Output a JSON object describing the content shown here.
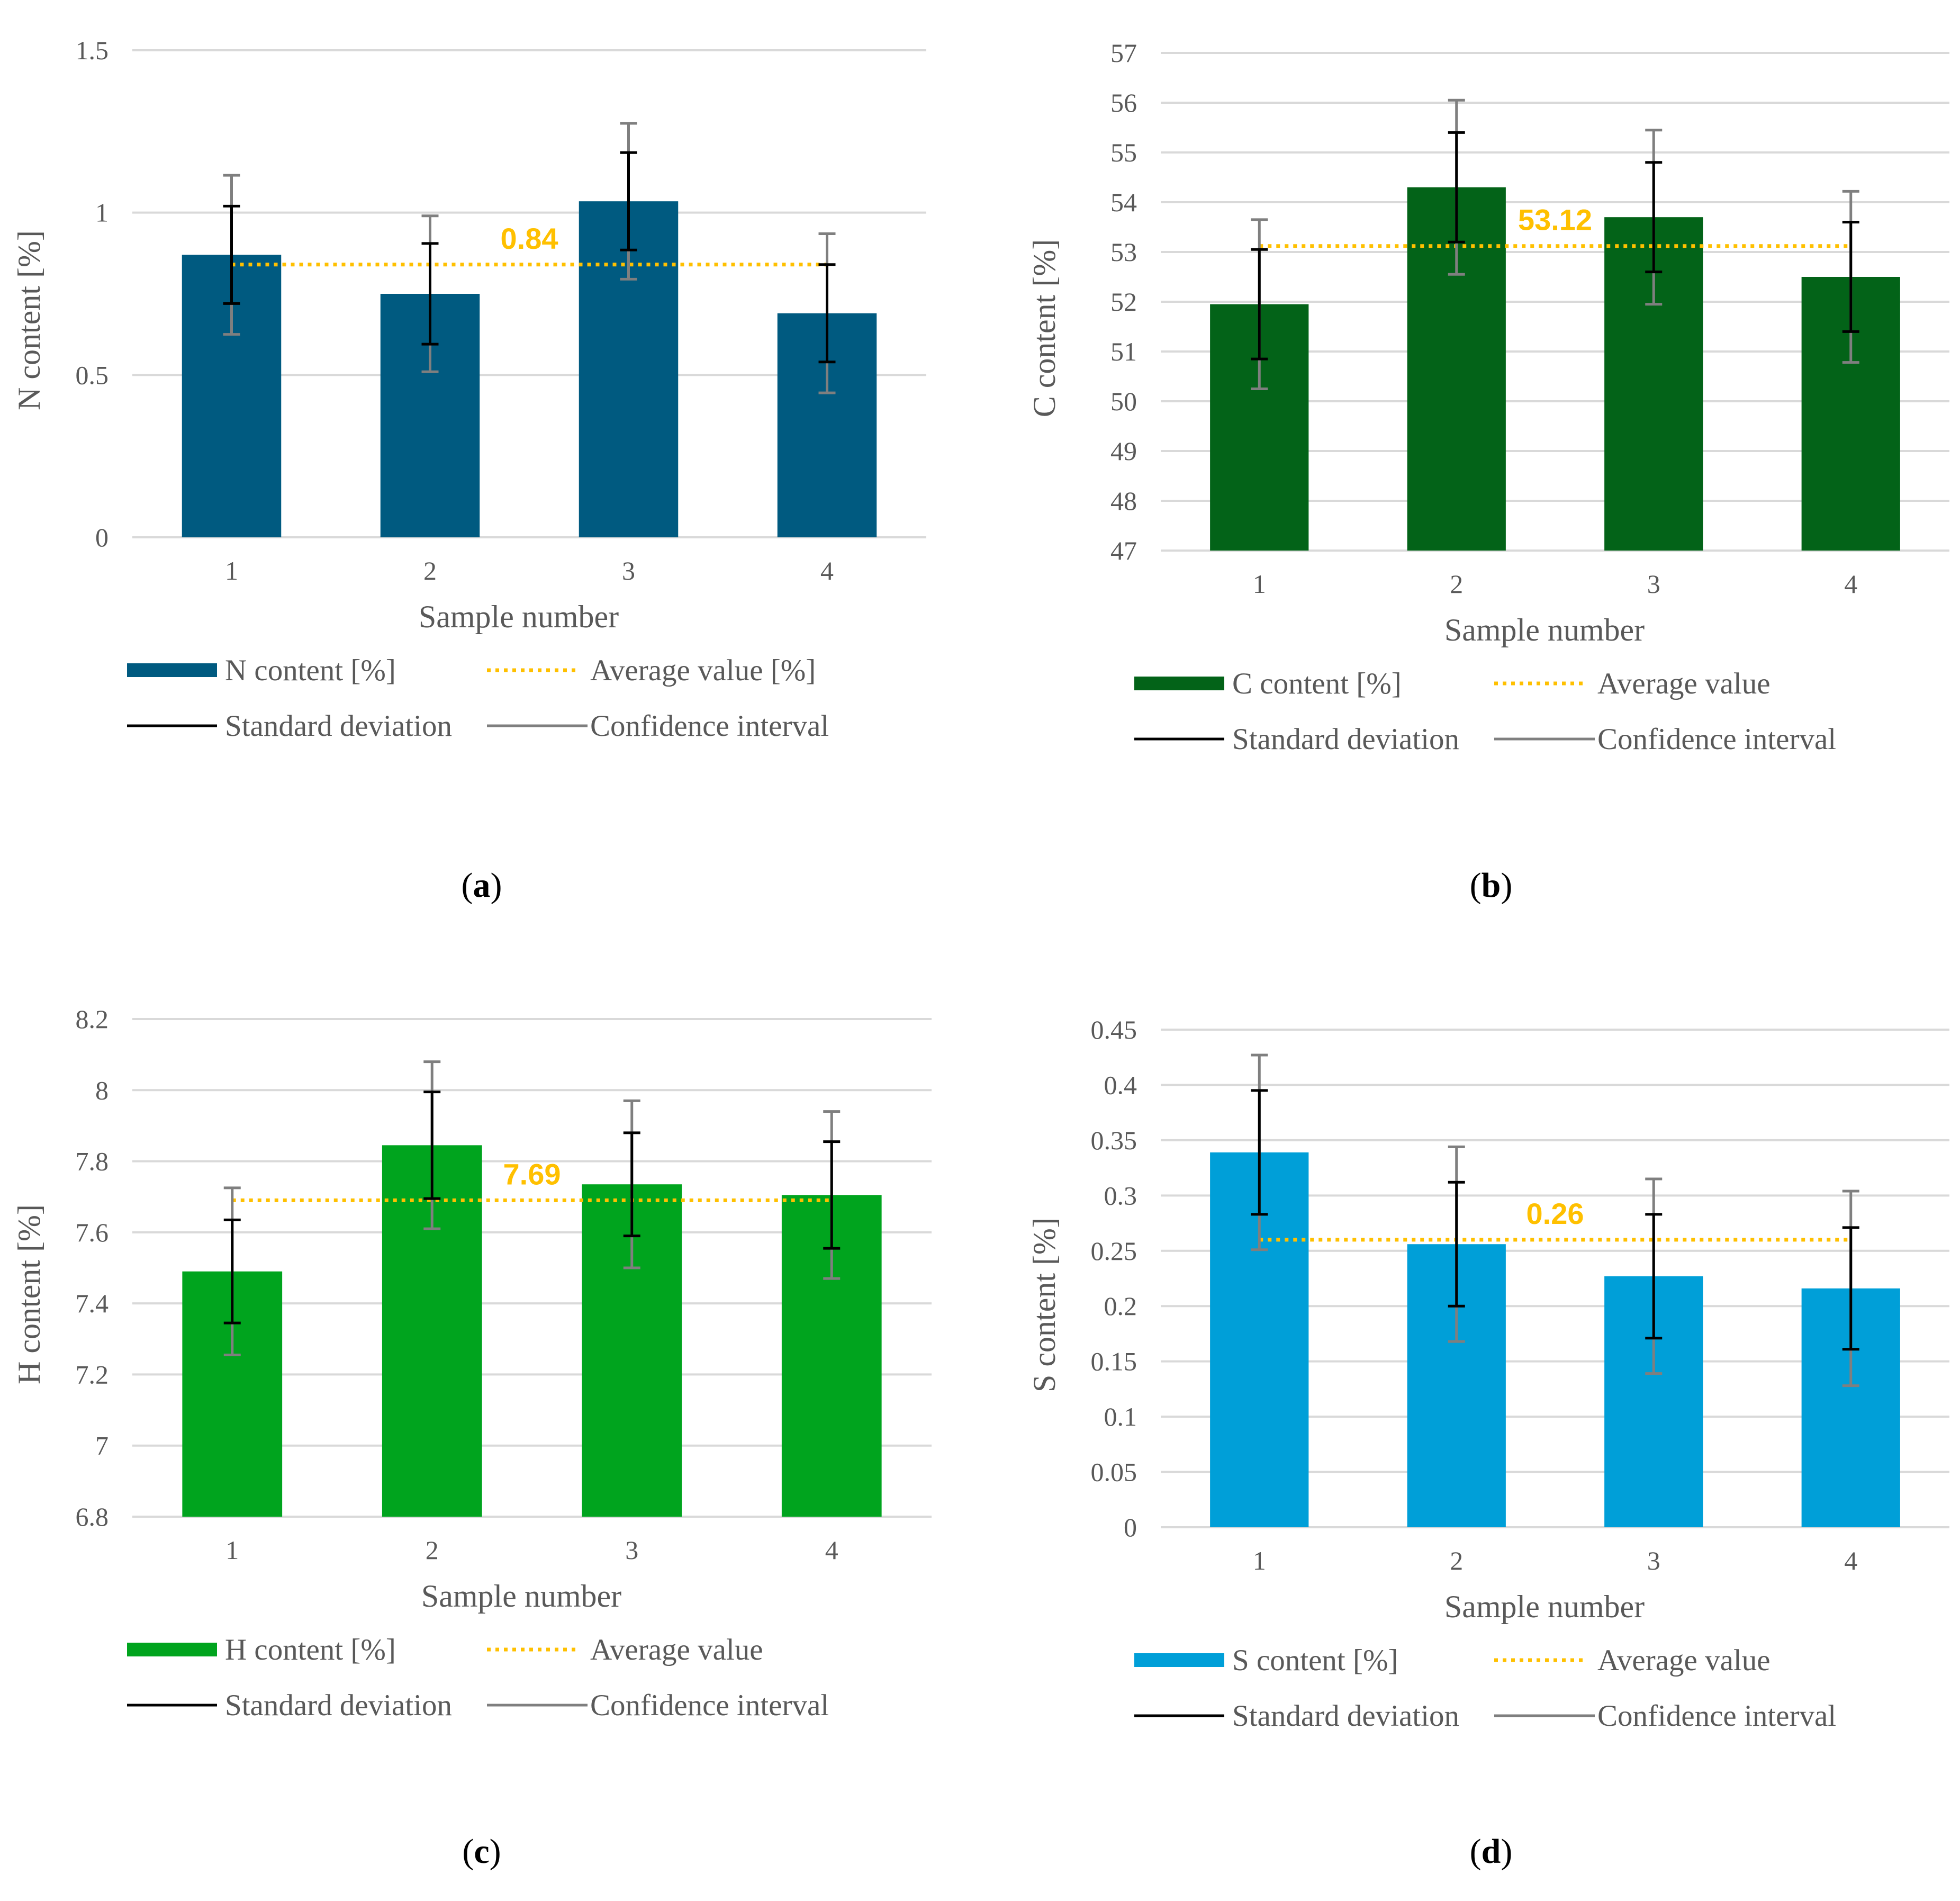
{
  "chart_data": [
    {
      "id": "a",
      "type": "bar",
      "caption_letter": "a",
      "categories": [
        "1",
        "2",
        "3",
        "4"
      ],
      "values": [
        0.87,
        0.75,
        1.035,
        0.69
      ],
      "std_dev": [
        0.15,
        0.155,
        0.15,
        0.15
      ],
      "conf_int": [
        0.245,
        0.24,
        0.24,
        0.245
      ],
      "average": 0.84,
      "average_label": "0.84",
      "xlabel": "Sample number",
      "ylabel": "N content [%]",
      "ylim": [
        0,
        1.5
      ],
      "yticks": [
        "0",
        "0.5",
        "1",
        "1.5"
      ],
      "ytick_values": [
        0,
        0.5,
        1,
        1.5
      ],
      "grid": true,
      "bar_color": "#005a80",
      "legend": [
        "N content [%]",
        "Average value [%]",
        "Standard deviation",
        "Confidence interval"
      ]
    },
    {
      "id": "b",
      "type": "bar",
      "caption_letter": "b",
      "categories": [
        "1",
        "2",
        "3",
        "4"
      ],
      "values": [
        51.95,
        54.3,
        53.7,
        52.5
      ],
      "std_dev": [
        1.1,
        1.1,
        1.1,
        1.1
      ],
      "conf_int": [
        1.7,
        1.75,
        1.75,
        1.72
      ],
      "average": 53.12,
      "average_label": "53.12",
      "xlabel": "Sample number",
      "ylabel": "C content [%]",
      "ylim": [
        47,
        57
      ],
      "yticks": [
        "47",
        "48",
        "49",
        "50",
        "51",
        "52",
        "53",
        "54",
        "55",
        "56",
        "57"
      ],
      "ytick_values": [
        47,
        48,
        49,
        50,
        51,
        52,
        53,
        54,
        55,
        56,
        57
      ],
      "grid": true,
      "bar_color": "#036318",
      "legend": [
        "C content [%]",
        "Average value",
        "Standard deviation",
        "Confidence interval"
      ]
    },
    {
      "id": "c",
      "type": "bar",
      "caption_letter": "c",
      "categories": [
        "1",
        "2",
        "3",
        "4"
      ],
      "values": [
        7.49,
        7.845,
        7.735,
        7.705
      ],
      "std_dev": [
        0.145,
        0.15,
        0.145,
        0.15
      ],
      "conf_int": [
        0.235,
        0.235,
        0.235,
        0.235
      ],
      "average": 7.69,
      "average_label": "7.69",
      "xlabel": "Sample number",
      "ylabel": "H content [%]",
      "ylim": [
        6.8,
        8.2
      ],
      "yticks": [
        "6.8",
        "7",
        "7.2",
        "7.4",
        "7.6",
        "7.8",
        "8",
        "8.2"
      ],
      "ytick_values": [
        6.8,
        7.0,
        7.2,
        7.4,
        7.6,
        7.8,
        8.0,
        8.2
      ],
      "grid": true,
      "bar_color": "#00a41e",
      "legend": [
        "H content [%]",
        "Average value",
        "Standard deviation",
        "Confidence interval"
      ]
    },
    {
      "id": "d",
      "type": "bar",
      "caption_letter": "d",
      "categories": [
        "1",
        "2",
        "3",
        "4"
      ],
      "values": [
        0.339,
        0.256,
        0.227,
        0.216
      ],
      "std_dev": [
        0.056,
        0.056,
        0.056,
        0.055
      ],
      "conf_int": [
        0.088,
        0.088,
        0.088,
        0.088
      ],
      "average": 0.26,
      "average_label": "0.26",
      "xlabel": "Sample number",
      "ylabel": "S content [%]",
      "ylim": [
        0,
        0.45
      ],
      "yticks": [
        "0",
        "0.05",
        "0.1",
        "0.15",
        "0.2",
        "0.25",
        "0.3",
        "0.35",
        "0.4",
        "0.45"
      ],
      "ytick_values": [
        0,
        0.05,
        0.1,
        0.15,
        0.2,
        0.25,
        0.3,
        0.35,
        0.4,
        0.45
      ],
      "grid": true,
      "bar_color": "#009fd8",
      "legend": [
        "S content [%]",
        "Average value",
        "Standard deviation",
        "Confidence interval"
      ]
    }
  ],
  "colors": {
    "average_line": "#ffc000",
    "std_dev": "#000000",
    "conf_int": "#7f7f7f",
    "grid": "#d9d9d9",
    "text": "#595959"
  }
}
